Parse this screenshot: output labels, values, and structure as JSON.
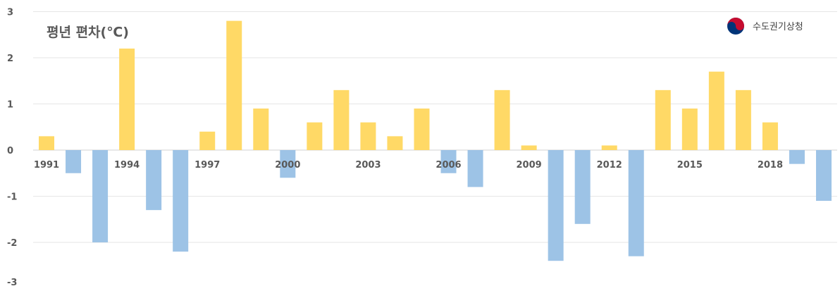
{
  "chart_data": {
    "type": "bar",
    "title": "평년 편차(℃)",
    "xlabel": "",
    "ylabel": "",
    "ylim": [
      -3,
      3
    ],
    "yticks": [
      3,
      2,
      1,
      0,
      -1,
      -2,
      -3
    ],
    "grid": true,
    "categories": [
      "1991",
      "1992",
      "1993",
      "1994",
      "1995",
      "1996",
      "1997",
      "1998",
      "1999",
      "2000",
      "2001",
      "2002",
      "2003",
      "2004",
      "2005",
      "2006",
      "2007",
      "2008",
      "2009",
      "2010",
      "2011",
      "2012",
      "2013",
      "2014",
      "2015",
      "2016",
      "2017",
      "2018",
      "2019",
      "2020"
    ],
    "x_tick_labels": [
      "1991",
      "1994",
      "1997",
      "2000",
      "2003",
      "2006",
      "2009",
      "2012",
      "2015",
      "2018"
    ],
    "values": [
      0.3,
      -0.5,
      -2.0,
      2.2,
      -1.3,
      -2.2,
      0.4,
      2.8,
      0.9,
      -0.6,
      0.6,
      1.3,
      0.6,
      0.3,
      0.9,
      -0.5,
      -0.8,
      1.3,
      0.1,
      -2.4,
      -1.6,
      0.1,
      -2.3,
      1.3,
      0.9,
      1.7,
      1.3,
      0.6,
      -0.3,
      -1.1
    ],
    "colors": {
      "positive": "#FFD966",
      "negative": "#9DC3E6",
      "grid": "#e6e6e6",
      "axis": "#d0d0d0",
      "text": "#595959"
    }
  },
  "logo": {
    "text": "수도권기상청",
    "icon": "taegeuk-icon",
    "colors": {
      "red": "#c60c30",
      "blue": "#003478"
    }
  }
}
